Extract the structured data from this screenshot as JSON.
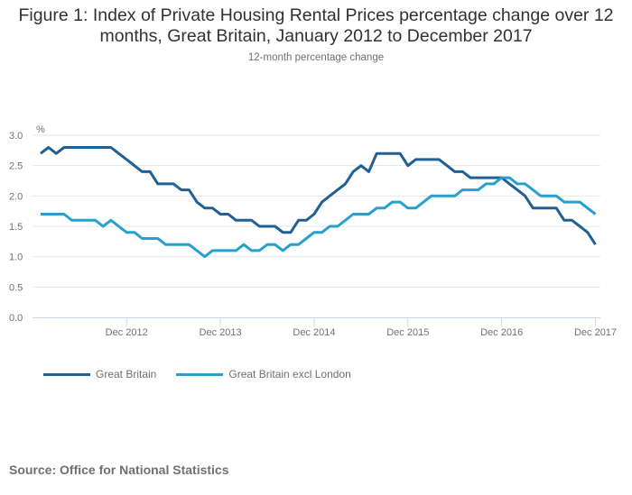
{
  "chart_data": {
    "type": "line",
    "title": "Figure 1: Index of Private Housing Rental Prices percentage change over 12 months, Great Britain, January 2012 to December 2017",
    "subtitle": "12-month percentage change",
    "ylabel": "%",
    "xlabel": "",
    "ylim": [
      0,
      3.0
    ],
    "yticks": [
      "0.0",
      "0.5",
      "1.0",
      "1.5",
      "2.0",
      "2.5",
      "3.0"
    ],
    "ytick_values": [
      0,
      0.5,
      1.0,
      1.5,
      2.0,
      2.5,
      3.0
    ],
    "xticks": [
      {
        "label": "Dec 2012",
        "index": 11
      },
      {
        "label": "Dec 2013",
        "index": 23
      },
      {
        "label": "Dec 2014",
        "index": 35
      },
      {
        "label": "Dec 2015",
        "index": 47
      },
      {
        "label": "Dec 2016",
        "index": 59
      },
      {
        "label": "Dec 2017",
        "index": 71
      }
    ],
    "x_range": "January 2012 to December 2017 (monthly)",
    "grid": true,
    "legend_position": "bottom-left",
    "series": [
      {
        "name": "Great Britain",
        "color": "#206095",
        "values": [
          2.7,
          2.8,
          2.7,
          2.8,
          2.8,
          2.8,
          2.8,
          2.8,
          2.8,
          2.8,
          2.7,
          2.6,
          2.5,
          2.4,
          2.4,
          2.2,
          2.2,
          2.2,
          2.1,
          2.1,
          1.9,
          1.8,
          1.8,
          1.7,
          1.7,
          1.6,
          1.6,
          1.6,
          1.5,
          1.5,
          1.5,
          1.4,
          1.4,
          1.6,
          1.6,
          1.7,
          1.9,
          2.0,
          2.1,
          2.2,
          2.4,
          2.5,
          2.4,
          2.7,
          2.7,
          2.7,
          2.7,
          2.5,
          2.6,
          2.6,
          2.6,
          2.6,
          2.5,
          2.4,
          2.4,
          2.3,
          2.3,
          2.3,
          2.3,
          2.3,
          2.2,
          2.1,
          2.0,
          1.8,
          1.8,
          1.8,
          1.8,
          1.6,
          1.6,
          1.5,
          1.4,
          1.2
        ]
      },
      {
        "name": "Great Britain excl London",
        "color": "#27a0cc",
        "values": [
          1.7,
          1.7,
          1.7,
          1.7,
          1.6,
          1.6,
          1.6,
          1.6,
          1.5,
          1.6,
          1.5,
          1.4,
          1.4,
          1.3,
          1.3,
          1.3,
          1.2,
          1.2,
          1.2,
          1.2,
          1.1,
          1.0,
          1.1,
          1.1,
          1.1,
          1.1,
          1.2,
          1.1,
          1.1,
          1.2,
          1.2,
          1.1,
          1.2,
          1.2,
          1.3,
          1.4,
          1.4,
          1.5,
          1.5,
          1.6,
          1.7,
          1.7,
          1.7,
          1.8,
          1.8,
          1.9,
          1.9,
          1.8,
          1.8,
          1.9,
          2.0,
          2.0,
          2.0,
          2.0,
          2.1,
          2.1,
          2.1,
          2.2,
          2.2,
          2.3,
          2.3,
          2.2,
          2.2,
          2.1,
          2.0,
          2.0,
          2.0,
          1.9,
          1.9,
          1.9,
          1.8,
          1.7
        ]
      }
    ]
  },
  "source": "Source: Office for National Statistics"
}
